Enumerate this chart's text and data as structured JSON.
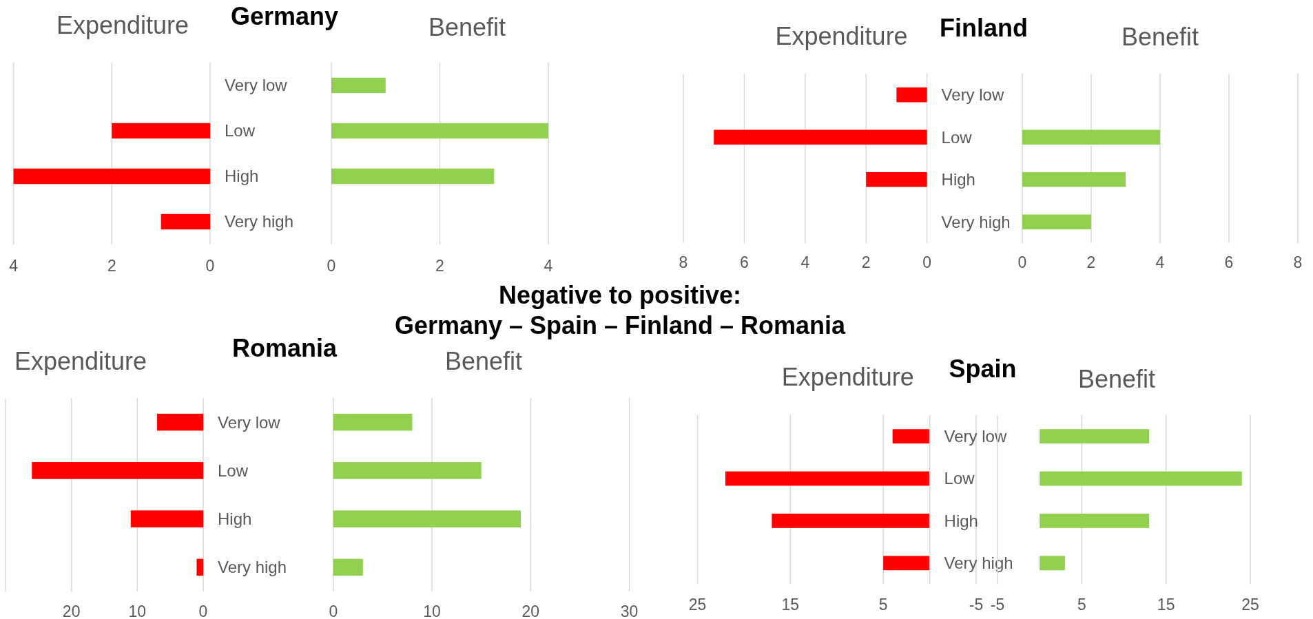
{
  "chart_data": [
    {
      "type": "bar",
      "orientation": "horizontal",
      "title": "Germany",
      "subtitle": "Expenditure",
      "categories": [
        "Very low",
        "Low",
        "High",
        "Very high"
      ],
      "values": [
        null,
        2,
        4,
        1
      ],
      "color": "#ff0000",
      "xlim": [
        4,
        0
      ],
      "xticks": [
        4,
        2,
        0
      ],
      "grid": "x"
    },
    {
      "type": "bar",
      "orientation": "horizontal",
      "subtitle": "Benefit",
      "categories": [
        null,
        null,
        null,
        null
      ],
      "values": [
        1,
        4,
        3,
        null
      ],
      "color": "#92d050",
      "xlim": [
        0,
        4
      ],
      "xticks": [
        0,
        2,
        4
      ],
      "grid": "x"
    },
    {
      "type": "bar",
      "orientation": "horizontal",
      "title": "Finland",
      "subtitle": "Expenditure",
      "categories": [
        "Very low",
        "Low",
        "High",
        "Very high"
      ],
      "values": [
        1,
        7,
        2,
        null
      ],
      "color": "#ff0000",
      "xlim": [
        8,
        0
      ],
      "xticks": [
        8,
        6,
        4,
        2,
        0
      ],
      "grid": "x"
    },
    {
      "type": "bar",
      "orientation": "horizontal",
      "subtitle": "Benefit",
      "categories": [
        null,
        null,
        null,
        null
      ],
      "values": [
        null,
        4,
        3,
        2
      ],
      "color": "#92d050",
      "xlim": [
        0,
        8
      ],
      "xticks": [
        0,
        2,
        4,
        6,
        8
      ],
      "grid": "x"
    },
    {
      "type": "other",
      "title": "Negative to positive:",
      "subtitle": "Germany – Spain – Finland – Romania"
    },
    {
      "type": "bar",
      "orientation": "horizontal",
      "title": "Romania",
      "subtitle": "Expenditure",
      "categories": [
        "Very low",
        "Low",
        "High",
        "Very high"
      ],
      "values": [
        7,
        26,
        11,
        1
      ],
      "color": "#ff0000",
      "xlim": [
        30,
        0
      ],
      "xticks": [
        {
          "value": 30,
          "label": null
        },
        20,
        10,
        0
      ],
      "grid": "x"
    },
    {
      "type": "bar",
      "orientation": "horizontal",
      "subtitle": "Benefit",
      "categories": [
        null,
        null,
        null,
        null
      ],
      "values": [
        8,
        15,
        19,
        3
      ],
      "color": "#92d050",
      "xlim": [
        0,
        30
      ],
      "xticks": [
        0,
        10,
        20,
        30
      ],
      "grid": "x"
    },
    {
      "type": "bar",
      "orientation": "horizontal",
      "title": "Spain",
      "subtitle": "Expenditure",
      "categories": [
        "Very low",
        "Low",
        "High",
        "Very high"
      ],
      "values": [
        4,
        22,
        17,
        5
      ],
      "color": "#ff0000",
      "xlim": [
        25,
        -5
      ],
      "xticks": [
        25,
        15,
        5,
        -5
      ],
      "grid": "x",
      "ref_lines": [
        {
          "axis": "x",
          "value": 0,
          "color": "#d9d9d9"
        }
      ]
    },
    {
      "type": "bar",
      "orientation": "horizontal",
      "subtitle": "Benefit",
      "categories": [
        null,
        null,
        null,
        null
      ],
      "values": [
        13,
        24,
        13,
        3
      ],
      "color": "#92d050",
      "xlim": [
        -5,
        25
      ],
      "xticks": [
        -5,
        5,
        15,
        25
      ],
      "grid": "x"
    }
  ]
}
